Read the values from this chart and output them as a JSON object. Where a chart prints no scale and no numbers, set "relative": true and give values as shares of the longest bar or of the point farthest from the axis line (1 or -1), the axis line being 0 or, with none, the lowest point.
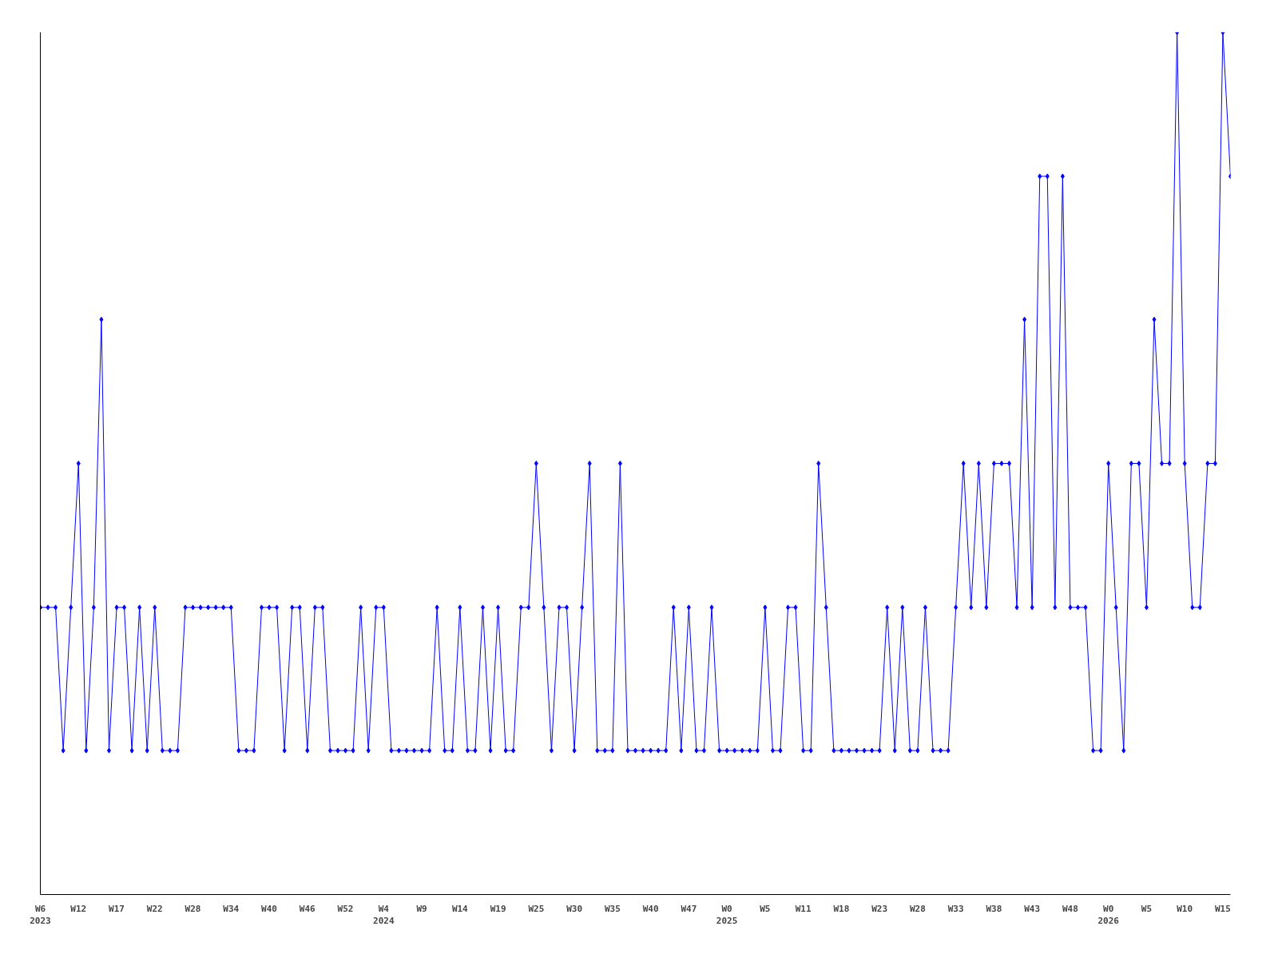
{
  "chart_data": {
    "type": "line",
    "relative": true,
    "grid": false,
    "marker": "diamond",
    "line_style": "solid",
    "categories": [
      "W6\n2023",
      null,
      null,
      null,
      null,
      "W12",
      null,
      null,
      null,
      null,
      "W17",
      null,
      null,
      null,
      null,
      "W22",
      null,
      null,
      null,
      null,
      "W28",
      null,
      null,
      null,
      null,
      "W34",
      null,
      null,
      null,
      null,
      "W40",
      null,
      null,
      null,
      null,
      "W46",
      null,
      null,
      null,
      null,
      "W52",
      null,
      null,
      null,
      null,
      "W4\n2024",
      null,
      null,
      null,
      null,
      "W9",
      null,
      null,
      null,
      null,
      "W14",
      null,
      null,
      null,
      null,
      "W19",
      null,
      null,
      null,
      null,
      "W25",
      null,
      null,
      null,
      null,
      "W30",
      null,
      null,
      null,
      null,
      "W35",
      null,
      null,
      null,
      null,
      "W40",
      null,
      null,
      null,
      null,
      "W47",
      null,
      null,
      null,
      null,
      "W0\n2025",
      null,
      null,
      null,
      null,
      "W5",
      null,
      null,
      null,
      null,
      "W11",
      null,
      null,
      null,
      null,
      "W18",
      null,
      null,
      null,
      null,
      "W23",
      null,
      null,
      null,
      null,
      "W28",
      null,
      null,
      null,
      null,
      "W33",
      null,
      null,
      null,
      null,
      "W38",
      null,
      null,
      null,
      null,
      "W43",
      null,
      null,
      null,
      null,
      "W48",
      null,
      null,
      null,
      null,
      "W0\n2026",
      null,
      null,
      null,
      null,
      "W5",
      null,
      null,
      null,
      null,
      "W10",
      null,
      null,
      null,
      null,
      "W15",
      null
    ],
    "series": [
      {
        "color": "#0000ff",
        "values": [
          0.333,
          0.333,
          0.333,
          0.167,
          0.333,
          0.5,
          0.167,
          0.333,
          0.667,
          0.167,
          0.333,
          0.333,
          0.167,
          0.333,
          0.167,
          0.333,
          0.167,
          0.167,
          0.167,
          0.333,
          0.333,
          0.333,
          0.333,
          0.333,
          0.333,
          0.333,
          0.167,
          0.167,
          0.167,
          0.333,
          0.333,
          0.333,
          0.167,
          0.333,
          0.333,
          0.167,
          0.333,
          0.333,
          0.167,
          0.167,
          0.167,
          0.167,
          0.333,
          0.167,
          0.333,
          0.333,
          0.167,
          0.167,
          0.167,
          0.167,
          0.167,
          0.167,
          0.333,
          0.167,
          0.167,
          0.333,
          0.167,
          0.167,
          0.333,
          0.167,
          0.333,
          0.167,
          0.167,
          0.333,
          0.333,
          0.5,
          0.333,
          0.167,
          0.333,
          0.333,
          0.167,
          0.333,
          0.5,
          0.167,
          0.167,
          0.167,
          0.5,
          0.167,
          0.167,
          0.167,
          0.167,
          0.167,
          0.167,
          0.333,
          0.167,
          0.333,
          0.167,
          0.167,
          0.333,
          0.167,
          0.167,
          0.167,
          0.167,
          0.167,
          0.167,
          0.333,
          0.167,
          0.167,
          0.333,
          0.333,
          0.167,
          0.167,
          0.5,
          0.333,
          0.167,
          0.167,
          0.167,
          0.167,
          0.167,
          0.167,
          0.167,
          0.333,
          0.167,
          0.333,
          0.167,
          0.167,
          0.333,
          0.167,
          0.167,
          0.167,
          0.333,
          0.5,
          0.333,
          0.5,
          0.333,
          0.5,
          0.5,
          0.5,
          0.333,
          0.667,
          0.333,
          0.833,
          0.833,
          0.333,
          0.833,
          0.333,
          0.333,
          0.333,
          0.167,
          0.167,
          0.5,
          0.333,
          0.167,
          0.5,
          0.5,
          0.333,
          0.667,
          0.5,
          0.5,
          1,
          0.5,
          0.333,
          0.333,
          0.5,
          0.5,
          1,
          0.833
        ]
      }
    ]
  }
}
